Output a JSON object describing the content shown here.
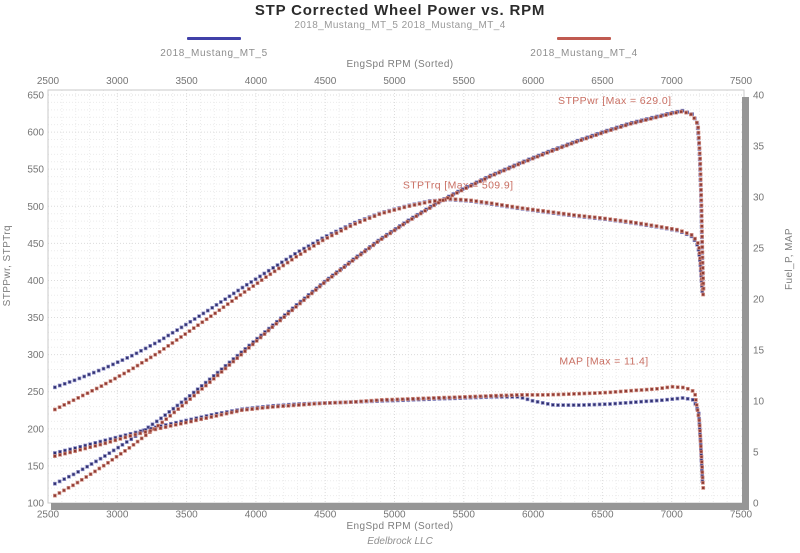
{
  "header": {
    "title": "STP Corrected Wheel Power vs. RPM",
    "subtitle": "2018_Mustang_MT_5 2018_Mustang_MT_4"
  },
  "legend": {
    "items": [
      {
        "label": "2018_Mustang_MT_5",
        "color": "#4040a8"
      },
      {
        "label": "2018_Mustang_MT_4",
        "color": "#c05a50"
      }
    ]
  },
  "footer": {
    "text": "Edelbrock LLC"
  },
  "chart_data": {
    "type": "scatter",
    "title": "STP Corrected Wheel Power vs. RPM",
    "subtitle": "2018_Mustang_MT_5 2018_Mustang_MT_4",
    "x_axis": {
      "label": "EngSpd RPM  (Sorted)",
      "min": 2500,
      "max": 7500,
      "ticks": [
        2500,
        3000,
        3500,
        4000,
        4500,
        5000,
        5500,
        6000,
        6500,
        7000,
        7500
      ]
    },
    "y_axis_left": {
      "label": "STPPwr, STPTrq",
      "min": 100,
      "max": 650,
      "ticks": [
        100,
        150,
        200,
        250,
        300,
        350,
        400,
        450,
        500,
        550,
        600,
        650
      ]
    },
    "y_axis_right": {
      "label": "Fuel_P, MAP",
      "min": 0,
      "max": 40,
      "ticks": [
        0,
        5,
        10,
        15,
        20,
        25,
        30,
        35,
        40
      ]
    },
    "grid": {
      "on": true,
      "minor_x_step": 100,
      "minor_y_step": 10,
      "major_x_step": 500,
      "major_y_step": 50
    },
    "legend_position": "top",
    "annotations": [
      {
        "text": "STPPwr  [Max = 629.0]",
        "rpm": 6180,
        "value": 638,
        "axis": "left"
      },
      {
        "text": "STPTrq  [Max = 509.9]",
        "rpm": 5060,
        "value": 524,
        "axis": "left"
      },
      {
        "text": "MAP  [Max = 11.4]",
        "rpm": 6190,
        "value": 13.6,
        "axis": "right"
      }
    ],
    "series": [
      {
        "name": "STPTrq 2018_Mustang_MT_5",
        "axis": "left",
        "color": "#31316e",
        "halo": "#8e8ec8",
        "points": [
          [
            2550,
            256
          ],
          [
            2700,
            266
          ],
          [
            2900,
            281
          ],
          [
            3100,
            298
          ],
          [
            3300,
            318
          ],
          [
            3500,
            341
          ],
          [
            3700,
            365
          ],
          [
            3900,
            390
          ],
          [
            4100,
            414
          ],
          [
            4300,
            438
          ],
          [
            4500,
            459
          ],
          [
            4700,
            477
          ],
          [
            4900,
            491
          ],
          [
            5100,
            501
          ],
          [
            5250,
            507
          ],
          [
            5400,
            509
          ],
          [
            5550,
            507
          ],
          [
            5700,
            503
          ],
          [
            5900,
            497
          ],
          [
            6100,
            492
          ],
          [
            6300,
            487
          ],
          [
            6500,
            483
          ],
          [
            6700,
            478
          ],
          [
            6900,
            472
          ],
          [
            7050,
            467
          ],
          [
            7150,
            459
          ],
          [
            7190,
            446
          ],
          [
            7205,
            425
          ],
          [
            7215,
            400
          ],
          [
            7222,
            380
          ]
        ]
      },
      {
        "name": "STPPwr 2018_Mustang_MT_5",
        "axis": "left",
        "color": "#31316e",
        "halo": "#8e8ec8",
        "points": [
          [
            2550,
            126
          ],
          [
            2700,
            140
          ],
          [
            2900,
            162
          ],
          [
            3100,
            186
          ],
          [
            3300,
            212
          ],
          [
            3500,
            241
          ],
          [
            3700,
            272
          ],
          [
            3900,
            304
          ],
          [
            4100,
            336
          ],
          [
            4300,
            368
          ],
          [
            4500,
            399
          ],
          [
            4700,
            428
          ],
          [
            4900,
            456
          ],
          [
            5100,
            481
          ],
          [
            5300,
            504
          ],
          [
            5500,
            524
          ],
          [
            5700,
            542
          ],
          [
            5900,
            558
          ],
          [
            6100,
            573
          ],
          [
            6300,
            587
          ],
          [
            6500,
            600
          ],
          [
            6700,
            612
          ],
          [
            6850,
            619
          ],
          [
            7000,
            626
          ],
          [
            7080,
            629
          ],
          [
            7150,
            624
          ],
          [
            7185,
            612
          ],
          [
            7200,
            575
          ],
          [
            7210,
            520
          ],
          [
            7218,
            455
          ],
          [
            7225,
            392
          ]
        ]
      },
      {
        "name": "MAP 2018_Mustang_MT_5",
        "axis": "right",
        "color": "#31316e",
        "halo": "#8e8ec8",
        "points": [
          [
            2550,
            4.9
          ],
          [
            2700,
            5.4
          ],
          [
            2900,
            6.1
          ],
          [
            3100,
            6.8
          ],
          [
            3300,
            7.5
          ],
          [
            3500,
            8.1
          ],
          [
            3700,
            8.7
          ],
          [
            3900,
            9.2
          ],
          [
            4100,
            9.5
          ],
          [
            4300,
            9.7
          ],
          [
            4500,
            9.8
          ],
          [
            4700,
            9.9
          ],
          [
            4900,
            10.0
          ],
          [
            5100,
            10.1
          ],
          [
            5300,
            10.2
          ],
          [
            5500,
            10.3
          ],
          [
            5700,
            10.4
          ],
          [
            5900,
            10.4
          ],
          [
            6000,
            10.0
          ],
          [
            6150,
            9.6
          ],
          [
            6350,
            9.6
          ],
          [
            6550,
            9.7
          ],
          [
            6750,
            9.9
          ],
          [
            6950,
            10.1
          ],
          [
            7080,
            10.3
          ],
          [
            7160,
            10.1
          ],
          [
            7195,
            8.8
          ],
          [
            7210,
            5.5
          ],
          [
            7222,
            2.0
          ]
        ]
      },
      {
        "name": "STPTrq 2018_Mustang_MT_4",
        "axis": "left",
        "color": "#8e3b33",
        "halo": "#d29186",
        "points": [
          [
            2550,
            226
          ],
          [
            2700,
            240
          ],
          [
            2900,
            259
          ],
          [
            3100,
            280
          ],
          [
            3300,
            303
          ],
          [
            3500,
            329
          ],
          [
            3700,
            355
          ],
          [
            3900,
            382
          ],
          [
            4100,
            408
          ],
          [
            4300,
            433
          ],
          [
            4500,
            456
          ],
          [
            4700,
            475
          ],
          [
            4900,
            490
          ],
          [
            5100,
            500
          ],
          [
            5250,
            506
          ],
          [
            5400,
            510
          ],
          [
            5550,
            508
          ],
          [
            5700,
            504
          ],
          [
            5900,
            498
          ],
          [
            6100,
            493
          ],
          [
            6300,
            488
          ],
          [
            6500,
            484
          ],
          [
            6700,
            479
          ],
          [
            6900,
            473
          ],
          [
            7050,
            468
          ],
          [
            7150,
            461
          ],
          [
            7195,
            449
          ],
          [
            7210,
            420
          ],
          [
            7220,
            393
          ],
          [
            7228,
            378
          ]
        ]
      },
      {
        "name": "STPPwr 2018_Mustang_MT_4",
        "axis": "left",
        "color": "#8e3b33",
        "halo": "#d29186",
        "points": [
          [
            2550,
            110
          ],
          [
            2700,
            126
          ],
          [
            2900,
            150
          ],
          [
            3100,
            176
          ],
          [
            3300,
            205
          ],
          [
            3500,
            236
          ],
          [
            3700,
            268
          ],
          [
            3900,
            301
          ],
          [
            4100,
            334
          ],
          [
            4300,
            366
          ],
          [
            4500,
            398
          ],
          [
            4700,
            427
          ],
          [
            4900,
            455
          ],
          [
            5100,
            480
          ],
          [
            5300,
            503
          ],
          [
            5500,
            523
          ],
          [
            5700,
            541
          ],
          [
            5900,
            557
          ],
          [
            6100,
            572
          ],
          [
            6300,
            586
          ],
          [
            6500,
            599
          ],
          [
            6700,
            611
          ],
          [
            6850,
            618
          ],
          [
            7000,
            625
          ],
          [
            7080,
            628
          ],
          [
            7150,
            623
          ],
          [
            7190,
            610
          ],
          [
            7205,
            565
          ],
          [
            7215,
            500
          ],
          [
            7222,
            430
          ],
          [
            7230,
            386
          ]
        ]
      },
      {
        "name": "MAP 2018_Mustang_MT_4",
        "axis": "right",
        "color": "#8e3b33",
        "halo": "#d29186",
        "points": [
          [
            2550,
            4.6
          ],
          [
            2700,
            5.1
          ],
          [
            2900,
            5.8
          ],
          [
            3100,
            6.6
          ],
          [
            3300,
            7.3
          ],
          [
            3500,
            7.9
          ],
          [
            3700,
            8.5
          ],
          [
            3900,
            9.1
          ],
          [
            4100,
            9.4
          ],
          [
            4300,
            9.6
          ],
          [
            4500,
            9.8
          ],
          [
            4700,
            9.9
          ],
          [
            4900,
            10.1
          ],
          [
            5100,
            10.2
          ],
          [
            5300,
            10.3
          ],
          [
            5500,
            10.4
          ],
          [
            5700,
            10.5
          ],
          [
            5900,
            10.6
          ],
          [
            6100,
            10.6
          ],
          [
            6300,
            10.7
          ],
          [
            6500,
            10.8
          ],
          [
            6700,
            11.0
          ],
          [
            6900,
            11.2
          ],
          [
            7000,
            11.4
          ],
          [
            7100,
            11.3
          ],
          [
            7165,
            10.9
          ],
          [
            7200,
            8.0
          ],
          [
            7215,
            4.5
          ],
          [
            7228,
            1.3
          ]
        ]
      }
    ]
  }
}
